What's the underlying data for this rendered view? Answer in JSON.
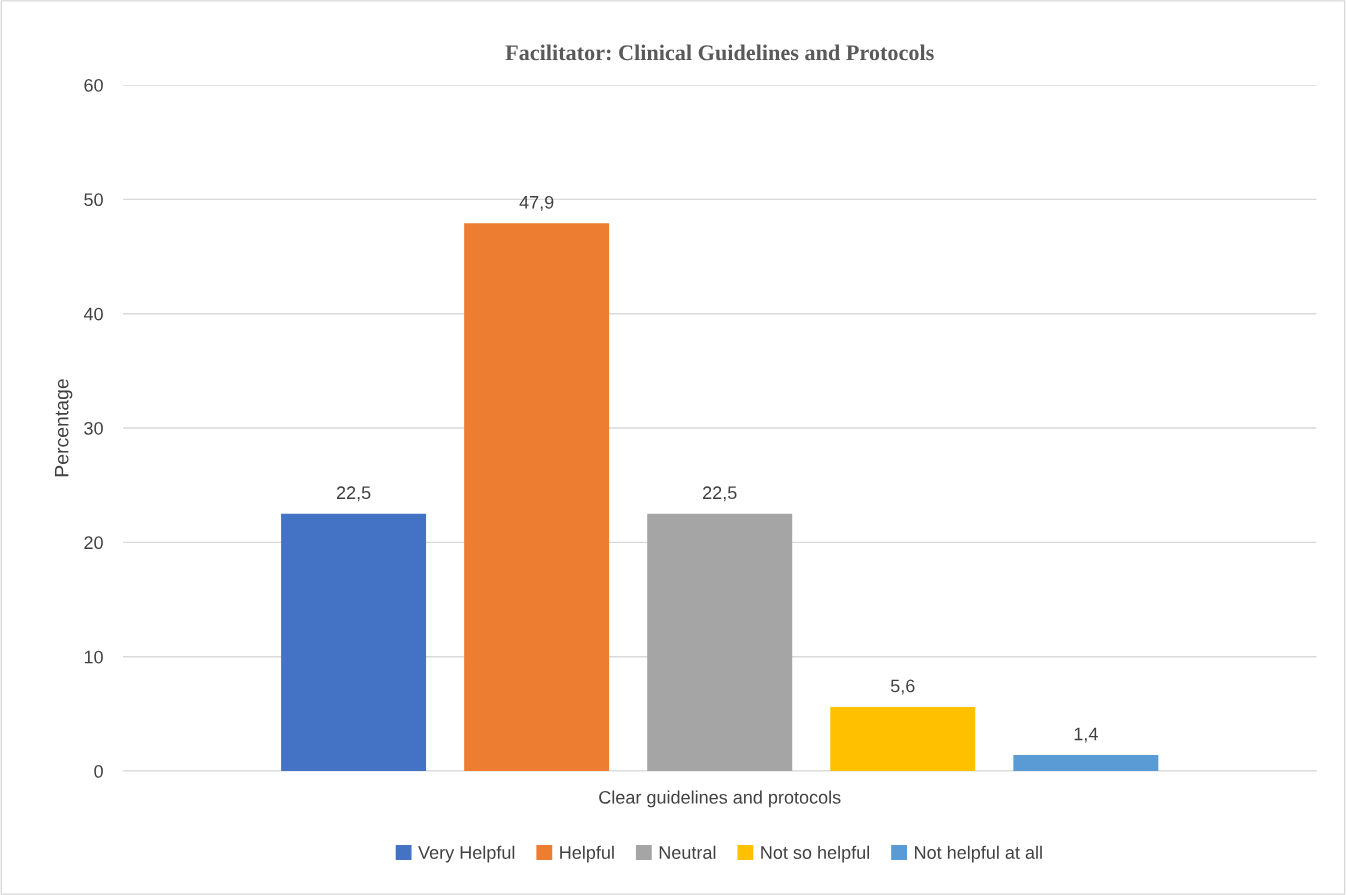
{
  "chart_data": {
    "type": "bar",
    "title": "Facilitator: Clinical Guidelines and Protocols",
    "ylabel": "Percentage",
    "categories": [
      "Clear guidelines and protocols"
    ],
    "series": [
      {
        "name": "Very Helpful",
        "color": "#4472c4",
        "values": [
          22.5
        ],
        "value_labels": [
          "22,5"
        ]
      },
      {
        "name": "Helpful",
        "color": "#ed7d31",
        "values": [
          47.9
        ],
        "value_labels": [
          "47,9"
        ]
      },
      {
        "name": "Neutral",
        "color": "#a5a5a5",
        "values": [
          22.5
        ],
        "value_labels": [
          "22,5"
        ]
      },
      {
        "name": "Not so helpful",
        "color": "#ffc000",
        "values": [
          5.6
        ],
        "value_labels": [
          "5,6"
        ]
      },
      {
        "name": "Not helpful at all",
        "color": "#5b9bd5",
        "values": [
          1.4
        ],
        "value_labels": [
          "1,4"
        ]
      }
    ],
    "ylim": [
      0,
      60
    ],
    "yticks": [
      0,
      10,
      20,
      30,
      40,
      50,
      60
    ],
    "grid": "y",
    "legend": "bottom"
  }
}
